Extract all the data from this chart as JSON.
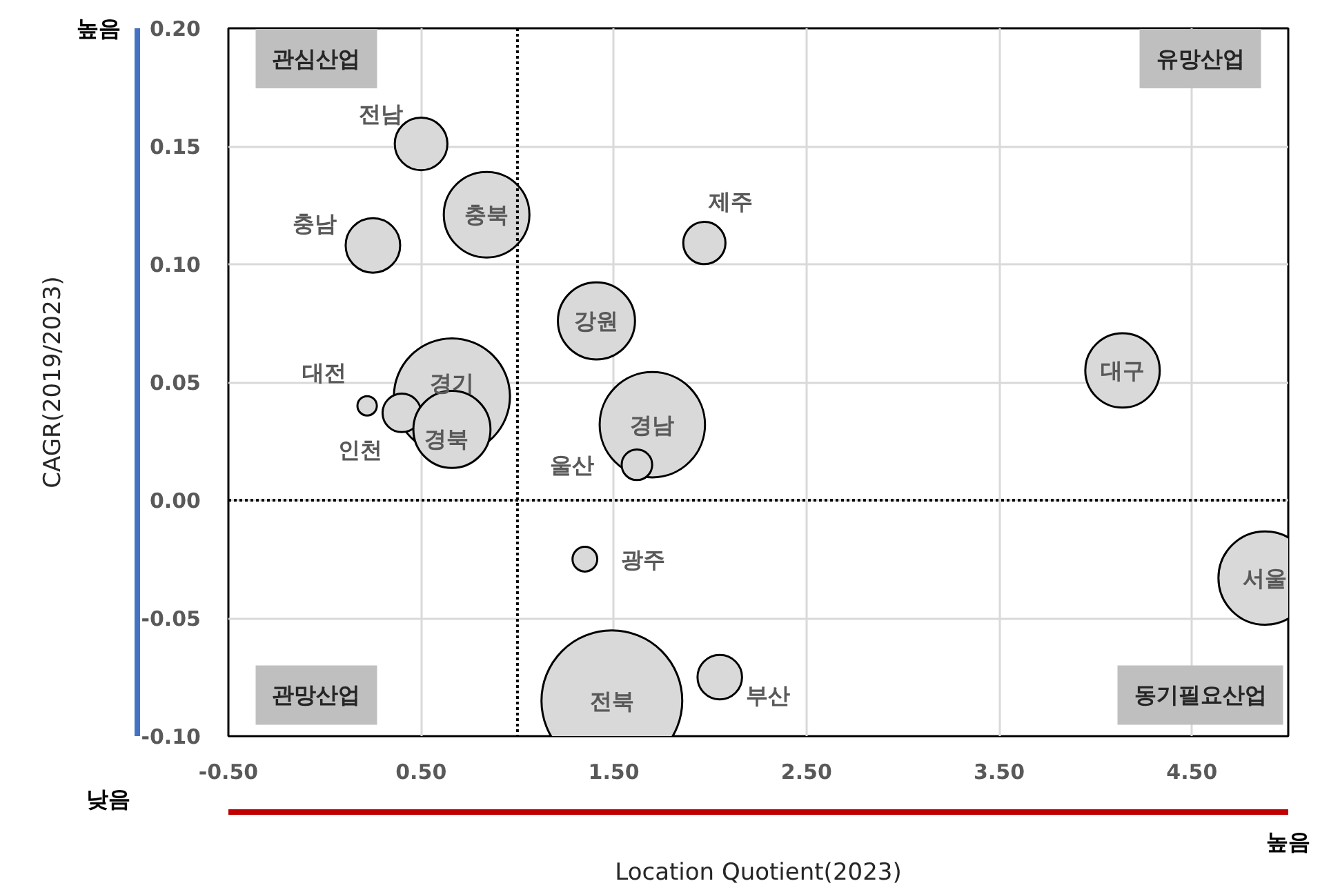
{
  "chart_data": {
    "type": "bubble",
    "xlabel": "Location Quotient(2023)",
    "ylabel": "CAGR(2019/2023)",
    "x": [
      0.5,
      0.25,
      0.84,
      1.41,
      0.66,
      0.22,
      0.4,
      0.66,
      1.7,
      1.62,
      1.97,
      4.14,
      1.35,
      1.49,
      2.05,
      4.88
    ],
    "series": [
      {
        "color": "#d9d9d9",
        "values": [
          0.151,
          0.108,
          0.121,
          0.076,
          0.044,
          0.04,
          0.037,
          0.03,
          0.032,
          0.015,
          0.109,
          0.055,
          -0.025,
          -0.085,
          -0.075,
          -0.033
        ],
        "sizes": [
          0.14,
          0.15,
          0.37,
          0.3,
          0.68,
          0.019,
          0.075,
          0.3,
          0.56,
          0.047,
          0.09,
          0.28,
          0.031,
          1,
          0.1,
          0.44
        ]
      }
    ],
    "xlim": [
      -0.5,
      5.0
    ],
    "ylim": [
      -0.1,
      0.2
    ],
    "xticks": [
      {
        "value": -0.5,
        "label": "-0.50"
      },
      {
        "value": 0.5,
        "label": "0.50"
      },
      {
        "value": 1.5,
        "label": "1.50"
      },
      {
        "value": 2.5,
        "label": "2.50"
      },
      {
        "value": 3.5,
        "label": "3.50"
      },
      {
        "value": 4.5,
        "label": "4.50"
      }
    ],
    "yticks": [
      {
        "value": -0.1,
        "label": "-0.10"
      },
      {
        "value": -0.05,
        "label": "-0.05"
      },
      {
        "value": 0,
        "label": "0.00"
      },
      {
        "value": 0.05,
        "label": "0.05"
      },
      {
        "value": 0.1,
        "label": "0.10"
      },
      {
        "value": 0.15,
        "label": "0.15"
      },
      {
        "value": 0.2,
        "label": "0.20"
      }
    ],
    "grid": true,
    "ref_lines": [
      {
        "axis": "x",
        "value": 1,
        "color": "#000000",
        "line_style": "dotted"
      },
      {
        "axis": "y",
        "value": 0,
        "color": "#000000",
        "line_style": "dotted"
      }
    ],
    "annotations": [
      "관심산업",
      "유망산업",
      "관망산업",
      "동기필요산업",
      "높음",
      "낮음",
      "높음",
      {
        "text": "전남",
        "x": 0.5,
        "y": 0.151
      },
      {
        "text": "충남",
        "x": 0.25,
        "y": 0.108
      },
      {
        "text": "충북",
        "x": 0.84,
        "y": 0.121
      },
      {
        "text": "강원",
        "x": 1.41,
        "y": 0.076
      },
      {
        "text": "경기",
        "x": 0.66,
        "y": 0.044
      },
      {
        "text": "대전",
        "x": 0.22,
        "y": 0.04
      },
      {
        "text": "인천",
        "x": 0.4,
        "y": 0.037
      },
      {
        "text": "경북",
        "x": 0.66,
        "y": 0.03
      },
      {
        "text": "경남",
        "x": 1.7,
        "y": 0.032
      },
      {
        "text": "울산",
        "x": 1.62,
        "y": 0.015
      },
      {
        "text": "제주",
        "x": 1.97,
        "y": 0.109
      },
      {
        "text": "대구",
        "x": 4.14,
        "y": 0.055
      },
      {
        "text": "광주",
        "x": 1.35,
        "y": -0.025
      },
      {
        "text": "전북",
        "x": 1.49,
        "y": -0.085
      },
      {
        "text": "부산",
        "x": 2.05,
        "y": -0.075
      },
      {
        "text": "서울",
        "x": 4.88,
        "y": -0.033
      }
    ]
  }
}
